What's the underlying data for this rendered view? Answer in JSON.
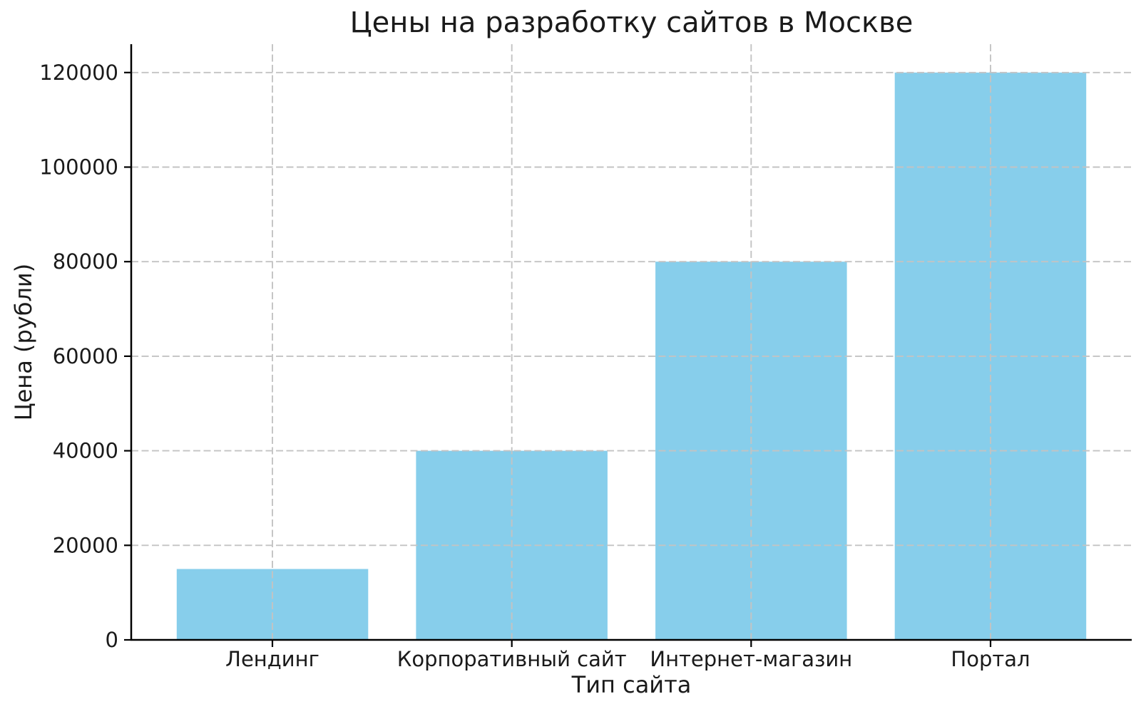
{
  "chart_data": {
    "type": "bar",
    "title": "Цены на разработку сайтов в Москве",
    "xlabel": "Тип сайта",
    "ylabel": "Цена (рубли)",
    "categories": [
      "Лендинг",
      "Корпоративный сайт",
      "Интернет-магазин",
      "Портал"
    ],
    "values": [
      15000,
      40000,
      80000,
      120000
    ],
    "yticks": [
      0,
      20000,
      40000,
      60000,
      80000,
      100000,
      120000
    ],
    "ylim": [
      0,
      126000
    ],
    "bar_color": "#87CEEB",
    "grid": "dashed, drawn over bars, horizontal at yticks and vertical at category centers",
    "grid_color": "#c3c3c3",
    "axis_color": "#000000",
    "text_color": "#1a1a1a",
    "background": "#ffffff",
    "legend": "none"
  }
}
